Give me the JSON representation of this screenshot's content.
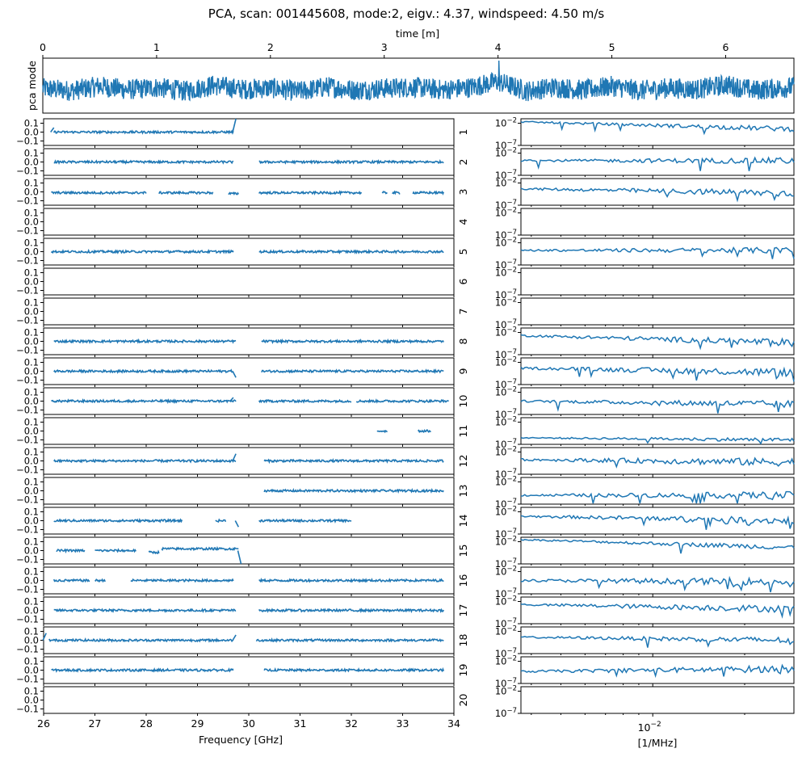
{
  "chart_data": [
    {
      "type": "line",
      "title": "PCA, scan: 001445608, mode:2, eigv.: 4.37, windspeed: 4.50 m/s",
      "xlabel": "time [m]",
      "ylabel": "pca mode",
      "xlim": [
        0,
        6.6
      ],
      "x_ticks": [
        "0",
        "1",
        "2",
        "3",
        "4",
        "5",
        "6"
      ],
      "color": "#1f77b4",
      "series": [
        {
          "x": [
            0,
            0.25,
            0.5,
            0.75,
            1.0,
            1.25,
            1.5,
            1.75,
            2.0,
            2.25,
            2.5,
            2.75,
            3.0,
            3.25,
            3.5,
            3.75,
            4.0,
            4.25,
            4.5,
            4.75,
            5.0,
            5.25,
            5.5,
            5.75,
            6.0,
            6.25,
            6.5
          ],
          "values": [
            0.1,
            -0.4,
            0.6,
            -0.2,
            0.3,
            -0.5,
            0.8,
            -0.1,
            0.2,
            -0.6,
            0.5,
            -0.3,
            0.1,
            0.4,
            -0.2,
            0.3,
            1.6,
            -0.5,
            0.4,
            -0.3,
            0.6,
            -0.4,
            0.2,
            -0.1,
            0.9,
            -0.3,
            0.2
          ]
        }
      ]
    },
    {
      "type": "scatter",
      "xlabel": "Frequency [GHz]",
      "xlim": [
        26,
        34
      ],
      "ylim": [
        -0.15,
        0.15
      ],
      "x_ticks": [
        "26",
        "27",
        "28",
        "29",
        "30",
        "31",
        "32",
        "33",
        "34"
      ],
      "y_ticks": [
        "0.1",
        "0.0",
        "−0.1"
      ],
      "color": "#1f77b4",
      "panels": [
        {
          "label": "1",
          "segments": [
            {
              "x": [
                26.2,
                29.7
              ],
              "y": 0.0
            }
          ],
          "spikes": [
            {
              "x": 26.2,
              "y": 0.05
            },
            {
              "x": 29.75,
              "y": 0.18
            }
          ]
        },
        {
          "label": "2",
          "segments": [
            {
              "x": [
                26.2,
                29.7
              ],
              "y": 0.0
            },
            {
              "x": 30.2,
              "y": 0.0,
              "x_end": 33.8
            }
          ]
        },
        {
          "label": "3",
          "segments": [
            {
              "x": [
                26.15,
                28.0
              ],
              "y": -0.01
            },
            {
              "x": [
                28.25,
                29.3
              ],
              "y": -0.01
            },
            {
              "x": [
                29.6,
                29.8
              ],
              "y": -0.02
            },
            {
              "x": [
                30.2,
                32.2
              ],
              "y": -0.01
            },
            {
              "x": [
                32.6,
                32.7
              ],
              "y": -0.01
            },
            {
              "x": [
                32.8,
                32.95
              ],
              "y": -0.01
            },
            {
              "x": [
                33.2,
                33.8
              ],
              "y": -0.01
            }
          ]
        },
        {
          "label": "4",
          "segments": []
        },
        {
          "label": "5",
          "segments": [
            {
              "x": [
                26.15,
                29.7
              ],
              "y": 0.0
            },
            {
              "x": [
                30.2,
                33.8
              ],
              "y": 0.0
            }
          ]
        },
        {
          "label": "6",
          "segments": []
        },
        {
          "label": "7",
          "segments": []
        },
        {
          "label": "8",
          "segments": [
            {
              "x": [
                26.2,
                29.75
              ],
              "y": 0.0
            },
            {
              "x": [
                30.25,
                33.8
              ],
              "y": 0.0
            }
          ]
        },
        {
          "label": "9",
          "segments": [
            {
              "x": [
                26.2,
                29.7
              ],
              "y": 0.0
            },
            {
              "x": [
                30.25,
                33.8
              ],
              "y": 0.0
            }
          ],
          "spikes": [
            {
              "x": 29.75,
              "y": -0.07
            }
          ]
        },
        {
          "label": "10",
          "segments": [
            {
              "x": [
                26.15,
                29.75
              ],
              "y": 0.0
            },
            {
              "x": [
                30.2,
                32.0
              ],
              "y": 0.0
            },
            {
              "x": [
                32.1,
                33.9
              ],
              "y": 0.0
            }
          ],
          "spikes": [
            {
              "x": 29.7,
              "y": 0.04
            }
          ]
        },
        {
          "label": "11",
          "segments": [
            {
              "x": [
                32.5,
                32.7
              ],
              "y": 0.0
            },
            {
              "x": [
                33.3,
                33.55
              ],
              "y": 0.0
            }
          ]
        },
        {
          "label": "12",
          "segments": [
            {
              "x": [
                26.2,
                29.75
              ],
              "y": 0.0
            },
            {
              "x": [
                30.3,
                33.8
              ],
              "y": 0.0
            }
          ],
          "spikes": [
            {
              "x": 29.75,
              "y": 0.08
            }
          ]
        },
        {
          "label": "13",
          "segments": [
            {
              "x": [
                30.3,
                33.8
              ],
              "y": 0.0
            }
          ]
        },
        {
          "label": "14",
          "segments": [
            {
              "x": [
                26.2,
                28.7
              ],
              "y": 0.0
            },
            {
              "x": [
                29.35,
                29.55
              ],
              "y": 0.0
            },
            {
              "x": [
                30.2,
                32.0
              ],
              "y": 0.0
            }
          ],
          "spikes": [
            {
              "x": 29.8,
              "y": -0.07
            }
          ]
        },
        {
          "label": "15",
          "segments": [
            {
              "x": [
                26.25,
                26.8
              ],
              "y": 0.0
            },
            {
              "x": [
                27.0,
                27.8
              ],
              "y": 0.0
            },
            {
              "x": [
                28.05,
                28.25
              ],
              "y": -0.02
            },
            {
              "x": [
                28.3,
                29.8
              ],
              "y": 0.02
            }
          ],
          "spikes": [
            {
              "x": 29.85,
              "y": -0.15
            }
          ]
        },
        {
          "label": "16",
          "segments": [
            {
              "x": [
                26.2,
                26.9
              ],
              "y": 0.0
            },
            {
              "x": [
                27.0,
                27.2
              ],
              "y": 0.0
            },
            {
              "x": [
                27.7,
                29.7
              ],
              "y": 0.0
            },
            {
              "x": [
                30.2,
                33.8
              ],
              "y": 0.0
            }
          ]
        },
        {
          "label": "17",
          "segments": [
            {
              "x": [
                26.2,
                29.75
              ],
              "y": 0.0
            },
            {
              "x": [
                30.2,
                33.8
              ],
              "y": 0.0
            }
          ]
        },
        {
          "label": "18",
          "segments": [
            {
              "x": [
                26.1,
                29.7
              ],
              "y": 0.0
            },
            {
              "x": [
                30.15,
                33.8
              ],
              "y": 0.0
            }
          ],
          "spikes": [
            {
              "x": 26.05,
              "y": 0.08
            },
            {
              "x": 29.75,
              "y": 0.06
            }
          ]
        },
        {
          "label": "19",
          "segments": [
            {
              "x": [
                26.15,
                29.7
              ],
              "y": 0.0
            },
            {
              "x": [
                30.3,
                33.8
              ],
              "y": 0.0
            }
          ]
        },
        {
          "label": "20",
          "segments": []
        }
      ]
    },
    {
      "type": "line",
      "xlabel": "[1/MHz]",
      "x_scale": "log",
      "y_scale": "log",
      "xlim": [
        0.0037,
        0.029
      ],
      "ylim": [
        1e-07,
        0.1
      ],
      "x_ticks": [
        "10−2"
      ],
      "y_ticks": [
        "10−2",
        "10−7"
      ],
      "color": "#1f77b4",
      "panels": [
        {
          "label": "1",
          "y_start": 0.02,
          "y_end": 0.0005,
          "noise": 0.5
        },
        {
          "label": "2",
          "y_start": 0.0002,
          "y_end": 0.0002,
          "noise": 0.6
        },
        {
          "label": "3",
          "y_start": 0.0005,
          "y_end": 5e-05,
          "noise": 0.7
        },
        {
          "label": "4",
          "empty": true
        },
        {
          "label": "5",
          "y_start": 0.0002,
          "y_end": 0.0002,
          "noise": 0.6
        },
        {
          "label": "6",
          "empty": true
        },
        {
          "label": "7",
          "empty": true
        },
        {
          "label": "8",
          "y_start": 0.002,
          "y_end": 5e-05,
          "noise": 0.7
        },
        {
          "label": "9",
          "y_start": 0.0005,
          "y_end": 5e-05,
          "noise": 0.8
        },
        {
          "label": "10",
          "y_start": 0.0001,
          "y_end": 2e-05,
          "noise": 0.7
        },
        {
          "label": "11",
          "y_start": 3e-06,
          "y_end": 1e-06,
          "noise": 0.4
        },
        {
          "label": "12",
          "y_start": 0.0002,
          "y_end": 5e-05,
          "noise": 0.8
        },
        {
          "label": "13",
          "y_start": 1e-05,
          "y_end": 1e-05,
          "noise": 0.7
        },
        {
          "label": "14",
          "y_start": 0.001,
          "y_end": 0.0001,
          "noise": 0.7
        },
        {
          "label": "15",
          "y_start": 0.03,
          "y_end": 0.0005,
          "noise": 0.5
        },
        {
          "label": "16",
          "y_start": 0.0001,
          "y_end": 5e-05,
          "noise": 0.8
        },
        {
          "label": "17",
          "y_start": 0.002,
          "y_end": 0.0002,
          "noise": 0.7
        },
        {
          "label": "18",
          "y_start": 0.0005,
          "y_end": 0.0001,
          "noise": 0.6
        },
        {
          "label": "19",
          "y_start": 5e-05,
          "y_end": 0.0002,
          "noise": 0.7
        },
        {
          "label": "20",
          "empty": true
        }
      ]
    }
  ]
}
